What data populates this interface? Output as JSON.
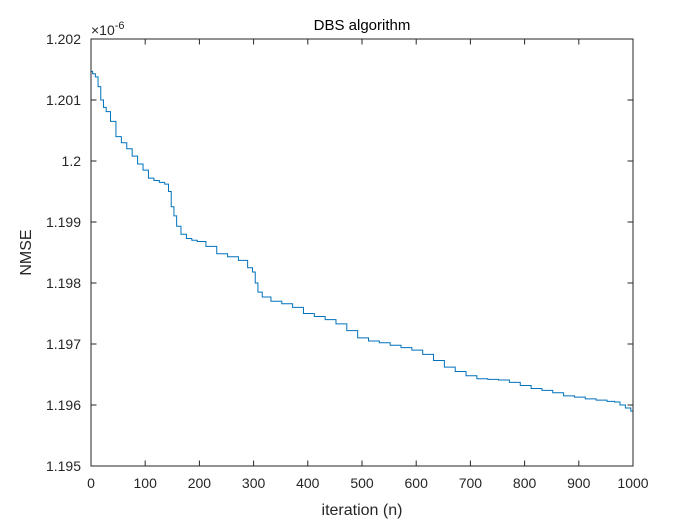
{
  "chart_data": {
    "type": "line",
    "title": "DBS algorithm",
    "xlabel": "iteration (n)",
    "ylabel": "NMSE",
    "y_exponent_label": "×10",
    "y_exponent_power": "-6",
    "xlim": [
      0,
      1000
    ],
    "ylim": [
      1.195,
      1.202
    ],
    "x_ticks": [
      0,
      100,
      200,
      300,
      400,
      500,
      600,
      700,
      800,
      900,
      1000
    ],
    "x_tick_labels": [
      "0",
      "100",
      "200",
      "300",
      "400",
      "500",
      "600",
      "700",
      "800",
      "900",
      "1000"
    ],
    "y_ticks": [
      1.195,
      1.196,
      1.197,
      1.198,
      1.199,
      1.2,
      1.201,
      1.202
    ],
    "y_tick_labels": [
      "1.195",
      "1.196",
      "1.197",
      "1.198",
      "1.199",
      "1.2",
      "1.201",
      "1.202"
    ],
    "grid": false,
    "series": [
      {
        "color": "#0072BD",
        "x": [
          0,
          5,
          10,
          15,
          20,
          25,
          30,
          40,
          50,
          60,
          70,
          80,
          90,
          100,
          110,
          120,
          130,
          140,
          145,
          150,
          155,
          160,
          170,
          180,
          190,
          200,
          220,
          240,
          260,
          280,
          295,
          300,
          305,
          310,
          320,
          340,
          360,
          380,
          400,
          420,
          440,
          460,
          480,
          500,
          520,
          540,
          560,
          580,
          600,
          620,
          640,
          660,
          680,
          700,
          720,
          740,
          760,
          780,
          800,
          820,
          840,
          860,
          880,
          900,
          920,
          940,
          960,
          970,
          980,
          990,
          1000
        ],
        "y": [
          1.20147,
          1.20143,
          1.20138,
          1.20122,
          1.201,
          1.20088,
          1.20081,
          1.20065,
          1.2004,
          1.2003,
          1.2002,
          1.20008,
          1.19995,
          1.19985,
          1.19972,
          1.19968,
          1.19965,
          1.19962,
          1.1995,
          1.19925,
          1.1991,
          1.19893,
          1.1988,
          1.19873,
          1.1987,
          1.19868,
          1.1986,
          1.19848,
          1.19843,
          1.19837,
          1.19825,
          1.19818,
          1.198,
          1.19785,
          1.19777,
          1.1977,
          1.19766,
          1.1976,
          1.1975,
          1.19745,
          1.1974,
          1.19733,
          1.19722,
          1.1971,
          1.19705,
          1.19702,
          1.19698,
          1.19694,
          1.1969,
          1.19683,
          1.19673,
          1.19662,
          1.19655,
          1.19648,
          1.19643,
          1.19642,
          1.19641,
          1.19637,
          1.19632,
          1.19627,
          1.19624,
          1.1962,
          1.19615,
          1.19613,
          1.1961,
          1.19608,
          1.19606,
          1.19605,
          1.196,
          1.19595,
          1.1959
        ]
      }
    ]
  }
}
